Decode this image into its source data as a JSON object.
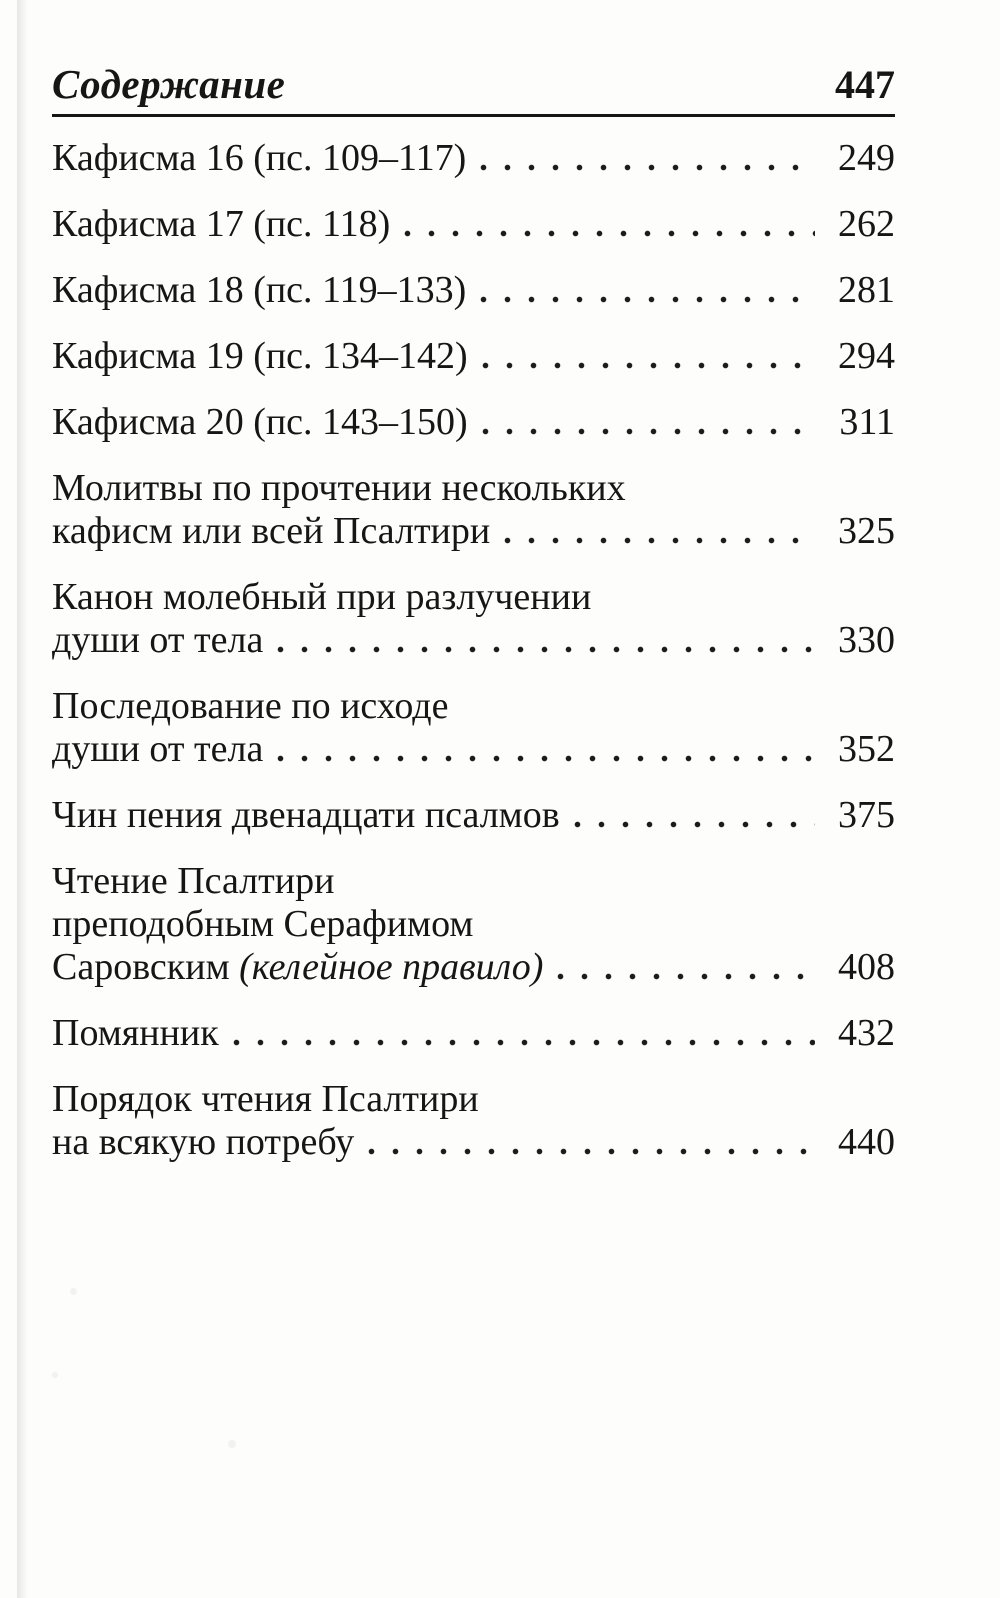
{
  "header": {
    "title": "Содержание",
    "page_number": "447"
  },
  "toc": {
    "entries": [
      {
        "lines": [
          [
            {
              "t": "Кафисма 16 (пс. 109–117)"
            }
          ]
        ],
        "page": "249"
      },
      {
        "lines": [
          [
            {
              "t": "Кафисма 17 (пс. 118)"
            }
          ]
        ],
        "page": "262"
      },
      {
        "lines": [
          [
            {
              "t": "Кафисма 18 (пс. 119–133)"
            }
          ]
        ],
        "page": "281"
      },
      {
        "lines": [
          [
            {
              "t": "Кафисма 19 (пс. 134–142)"
            }
          ]
        ],
        "page": "294"
      },
      {
        "lines": [
          [
            {
              "t": "Кафисма 20 (пс. 143–150)"
            }
          ]
        ],
        "page": "311"
      },
      {
        "lines": [
          [
            {
              "t": "Молитвы по прочтении нескольких"
            }
          ],
          [
            {
              "t": "кафисм или всей Псалтири"
            }
          ]
        ],
        "page": "325"
      },
      {
        "lines": [
          [
            {
              "t": "Канон молебный при разлучении"
            }
          ],
          [
            {
              "t": "души от тела"
            }
          ]
        ],
        "page": "330"
      },
      {
        "lines": [
          [
            {
              "t": "Последование по исходе"
            }
          ],
          [
            {
              "t": "души от тела"
            }
          ]
        ],
        "page": "352"
      },
      {
        "lines": [
          [
            {
              "t": "Чин пения двенадцати псалмов"
            }
          ]
        ],
        "page": "375"
      },
      {
        "lines": [
          [
            {
              "t": "Чтение Псалтири"
            }
          ],
          [
            {
              "t": "преподобным Серафимом"
            }
          ],
          [
            {
              "t": "Саровским "
            },
            {
              "t": "(келейное правило)",
              "i": true
            }
          ]
        ],
        "page": "408"
      },
      {
        "lines": [
          [
            {
              "t": "Помянник"
            }
          ]
        ],
        "page": "432"
      },
      {
        "lines": [
          [
            {
              "t": "Порядок чтения Псалтири"
            }
          ],
          [
            {
              "t": "на всякую потребу"
            }
          ]
        ],
        "page": "440"
      }
    ]
  }
}
